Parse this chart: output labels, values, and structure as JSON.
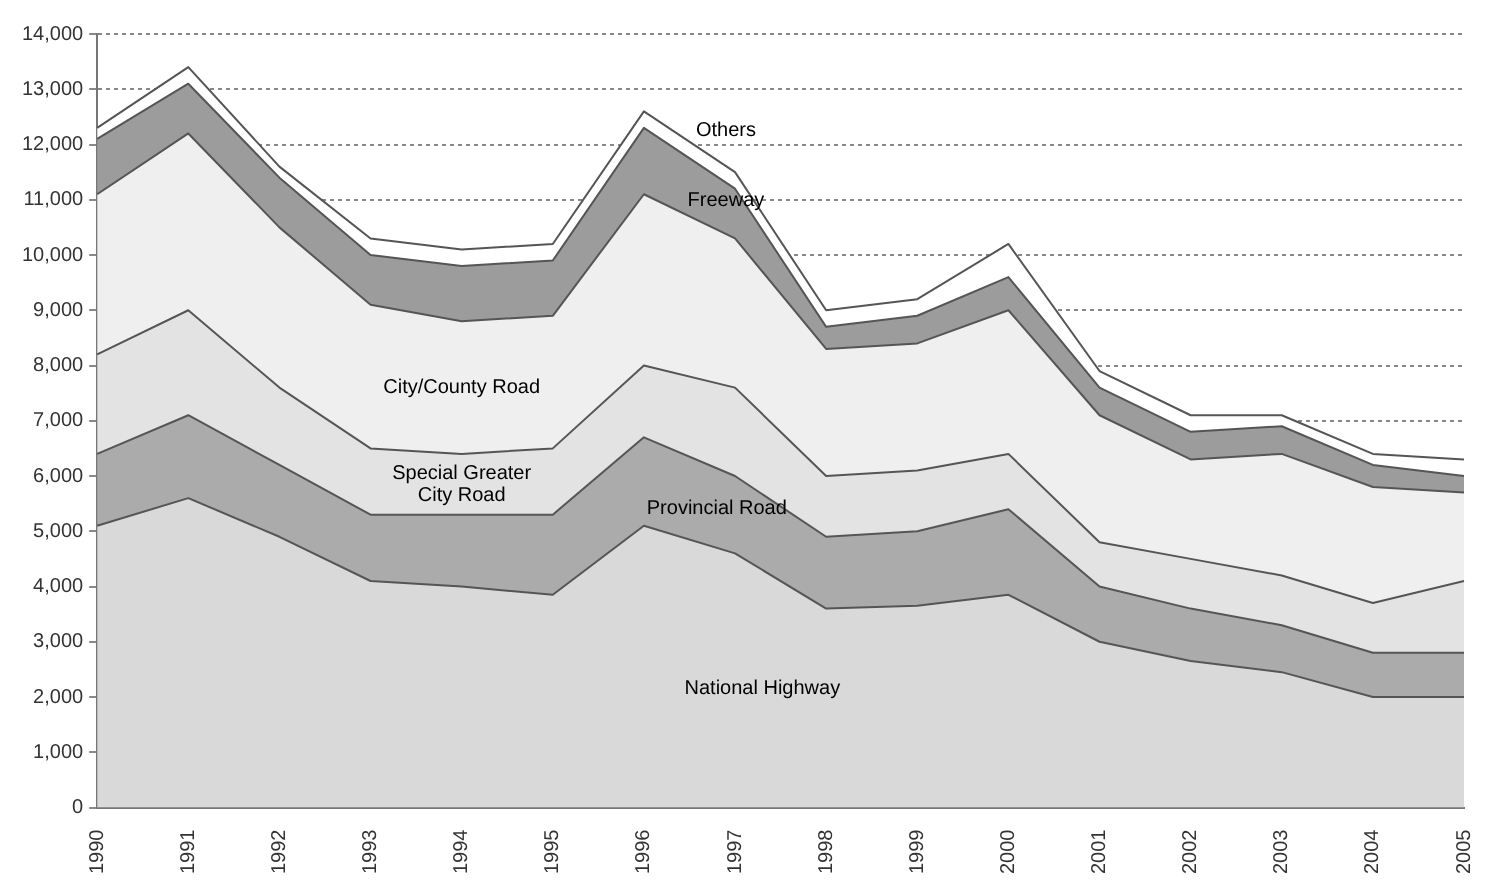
{
  "chart_data": {
    "type": "area",
    "stacked": true,
    "grid": "y",
    "legend": false,
    "marker": "none",
    "categories": [
      "1990",
      "1991",
      "1992",
      "1993",
      "1994",
      "1995",
      "1996",
      "1997",
      "1998",
      "1999",
      "2000",
      "2001",
      "2002",
      "2003",
      "2004",
      "2005"
    ],
    "ylim": [
      0,
      14000
    ],
    "yticks": [
      0,
      {
        "value": 1000,
        "label": "1,000"
      },
      {
        "value": 2000,
        "label": "2,000"
      },
      {
        "value": 3000,
        "label": "3,000"
      },
      {
        "value": 4000,
        "label": "4,000"
      },
      {
        "value": 5000,
        "label": "5,000"
      },
      {
        "value": 6000,
        "label": "6,000"
      },
      {
        "value": 7000,
        "label": "7,000"
      },
      {
        "value": 8000,
        "label": "8,000"
      },
      {
        "value": 9000,
        "label": "9,000"
      },
      {
        "value": 10000,
        "label": "10,000"
      },
      {
        "value": 11000,
        "label": "11,000"
      },
      {
        "value": 12000,
        "label": "12,000"
      },
      {
        "value": 13000,
        "label": "13,000"
      },
      {
        "value": 14000,
        "label": "14,000"
      }
    ],
    "series": [
      {
        "name": "National Highway",
        "color": "#d9d9d9",
        "values": [
          5100,
          5600,
          4900,
          4100,
          4000,
          3850,
          5100,
          4600,
          3600,
          3650,
          3850,
          3000,
          2650,
          2450,
          2000,
          2000
        ]
      },
      {
        "name": "Provincial Road",
        "color": "#ababab",
        "values": [
          1300,
          1500,
          1300,
          1200,
          1300,
          1450,
          1600,
          1400,
          1300,
          1350,
          1550,
          1000,
          950,
          850,
          800,
          800
        ]
      },
      {
        "name": "Special Greater City Road",
        "color": "#e3e3e3",
        "values": [
          1800,
          1900,
          1400,
          1200,
          1100,
          1200,
          1300,
          1600,
          1100,
          1100,
          1000,
          800,
          900,
          900,
          900,
          1300
        ]
      },
      {
        "name": "City/County Road",
        "color": "#efefef",
        "values": [
          2900,
          3200,
          2900,
          2600,
          2400,
          2400,
          3100,
          2700,
          2300,
          2300,
          2600,
          2300,
          1800,
          2200,
          2100,
          1600
        ]
      },
      {
        "name": "Freeway",
        "color": "#9c9c9c",
        "values": [
          1000,
          900,
          900,
          900,
          1000,
          1000,
          1200,
          900,
          400,
          500,
          600,
          500,
          500,
          500,
          400,
          300
        ]
      },
      {
        "name": "Others",
        "color": "#ffffff",
        "values": [
          200,
          300,
          200,
          300,
          300,
          300,
          300,
          300,
          300,
          300,
          600,
          300,
          300,
          200,
          200,
          300
        ]
      }
    ]
  }
}
